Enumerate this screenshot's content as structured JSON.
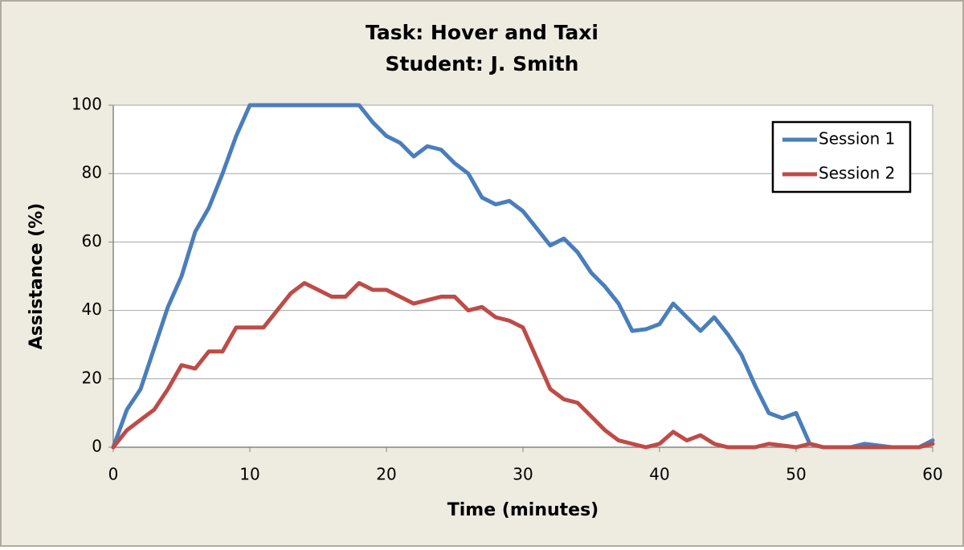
{
  "chart_data": {
    "type": "line",
    "title": "Task: Hover and Taxi",
    "subtitle": "Student: J. Smith",
    "x_label": "Time (minutes)",
    "y_label": "Assistance (%)",
    "x": [
      0,
      1,
      2,
      3,
      4,
      5,
      6,
      7,
      8,
      9,
      10,
      11,
      12,
      13,
      14,
      15,
      16,
      17,
      18,
      19,
      20,
      21,
      22,
      23,
      24,
      25,
      26,
      27,
      28,
      29,
      30,
      31,
      32,
      33,
      34,
      35,
      36,
      37,
      38,
      39,
      40,
      41,
      42,
      43,
      44,
      45,
      46,
      47,
      48,
      49,
      50,
      51,
      52,
      53,
      54,
      55,
      56,
      57,
      58,
      59,
      60
    ],
    "series": [
      {
        "name": "Session 1",
        "color": "#4a7ebb",
        "values": [
          0,
          11,
          17,
          29,
          41,
          50,
          63,
          70,
          80,
          91,
          100,
          100,
          100,
          100,
          100,
          100,
          100,
          100,
          100,
          95,
          91,
          89,
          85,
          88,
          87,
          83,
          80,
          73,
          71,
          72,
          69,
          64,
          59,
          61,
          57,
          51,
          47,
          42,
          34,
          34.5,
          36,
          42,
          38,
          34,
          38,
          33,
          27,
          18,
          10,
          8.5,
          10,
          1,
          0,
          0,
          0,
          1,
          0.5,
          0,
          0,
          0,
          2
        ]
      },
      {
        "name": "Session 2",
        "color": "#be4b48",
        "values": [
          0,
          5,
          8,
          11,
          17,
          24,
          23,
          28,
          28,
          35,
          35,
          35,
          40,
          45,
          48,
          46,
          44,
          44,
          48,
          46,
          46,
          44,
          42,
          43,
          44,
          44,
          40,
          41,
          38,
          37,
          35,
          26,
          17,
          14,
          13,
          9,
          5,
          2,
          1,
          0,
          1,
          4.5,
          2,
          3.5,
          1,
          0,
          0,
          0,
          1,
          0.5,
          0,
          1,
          0,
          0,
          0,
          0,
          0,
          0,
          0,
          0,
          1
        ]
      }
    ],
    "xlim": [
      0,
      60
    ],
    "xticks": [
      0,
      10,
      20,
      30,
      40,
      50,
      60
    ],
    "ylim": [
      0,
      100
    ],
    "yticks": [
      0,
      20,
      40,
      60,
      80,
      100
    ],
    "grid": true,
    "legend": "upper right"
  }
}
